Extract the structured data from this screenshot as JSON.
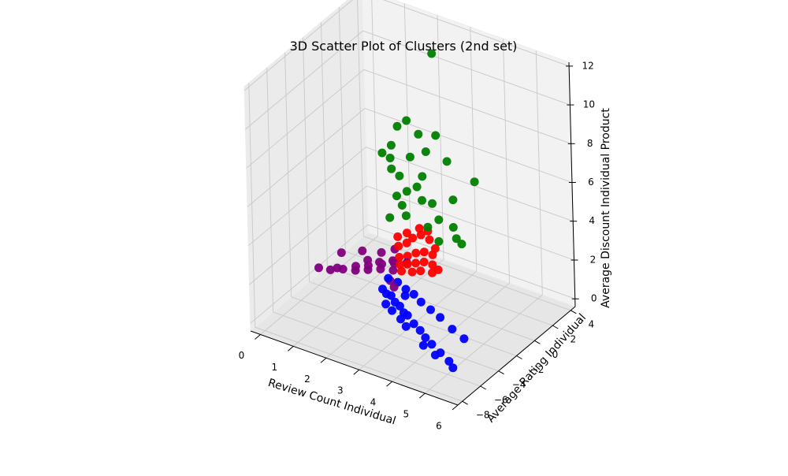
{
  "chart_data": {
    "type": "scatter3d",
    "title": "3D Scatter Plot of Clusters (2nd set)",
    "xlabel": "Review Count Individual",
    "ylabel": "Average Rating Individual",
    "zlabel": "Average Discount Individual Product",
    "xlim": [
      -0.3,
      6.0
    ],
    "ylim": [
      -8.5,
      4.5
    ],
    "zlim": [
      -0.4,
      12.2
    ],
    "xticks": [
      0,
      1,
      2,
      3,
      4,
      5,
      6
    ],
    "yticks": [
      -8,
      -6,
      -4,
      -2,
      0,
      2,
      4
    ],
    "zticks": [
      0,
      2,
      4,
      6,
      8,
      10,
      12
    ],
    "xtick_labels": [
      "0",
      "1",
      "2",
      "3",
      "4",
      "5",
      "6"
    ],
    "ytick_labels": [
      "−8",
      "−6",
      "−4",
      "−2",
      "0",
      "2",
      "4"
    ],
    "ztick_labels": [
      "0",
      "2",
      "4",
      "6",
      "8",
      "10",
      "12"
    ],
    "grid": true,
    "legend": "none",
    "series": [
      {
        "color": "#0000ff",
        "points": [
          [
            1.8,
            -1.5,
            0.3
          ],
          [
            2.0,
            -1.8,
            0.3
          ],
          [
            2.2,
            -2.0,
            0.4
          ],
          [
            2.4,
            -2.3,
            0.3
          ],
          [
            2.6,
            -2.5,
            0.3
          ],
          [
            2.8,
            -2.8,
            0.2
          ],
          [
            3.0,
            -3.1,
            0.3
          ],
          [
            3.3,
            -3.5,
            0.2
          ],
          [
            3.6,
            -3.9,
            0.2
          ],
          [
            3.9,
            -4.4,
            0.2
          ],
          [
            4.2,
            -4.8,
            0.2
          ],
          [
            4.6,
            -5.3,
            0.2
          ],
          [
            5.0,
            -5.8,
            0.2
          ],
          [
            5.2,
            -6.1,
            0.1
          ],
          [
            2.1,
            -0.9,
            0.6
          ],
          [
            2.4,
            -1.1,
            0.5
          ],
          [
            2.7,
            -1.3,
            0.5
          ],
          [
            3.0,
            -1.6,
            0.4
          ],
          [
            3.4,
            -2.0,
            0.4
          ],
          [
            3.8,
            -2.4,
            0.4
          ],
          [
            4.3,
            -2.9,
            0.3
          ],
          [
            4.8,
            -3.4,
            0.3
          ],
          [
            2.2,
            -2.6,
            0.2
          ],
          [
            2.5,
            -3.0,
            0.2
          ],
          [
            2.9,
            -3.5,
            0.2
          ],
          [
            3.2,
            -4.0,
            0.2
          ],
          [
            4.0,
            -5.0,
            0.1
          ],
          [
            4.5,
            -5.5,
            0.1
          ],
          [
            1.9,
            -1.2,
            0.8
          ],
          [
            2.6,
            -1.9,
            0.6
          ]
        ]
      },
      {
        "color": "#800080",
        "points": [
          [
            0.0,
            -2.0,
            0.5
          ],
          [
            0.3,
            -1.8,
            0.5
          ],
          [
            0.6,
            -1.5,
            0.6
          ],
          [
            0.9,
            -1.2,
            0.6
          ],
          [
            1.2,
            -0.9,
            0.7
          ],
          [
            1.5,
            -0.6,
            0.8
          ],
          [
            1.8,
            -0.3,
            0.8
          ],
          [
            1.1,
            -0.5,
            0.7
          ],
          [
            1.4,
            -0.1,
            0.8
          ],
          [
            1.7,
            0.2,
            0.9
          ],
          [
            2.0,
            0.5,
            1.0
          ],
          [
            0.8,
            -0.8,
            0.6
          ],
          [
            1.3,
            0.0,
            0.8
          ],
          [
            1.6,
            0.4,
            0.9
          ],
          [
            1.9,
            -1.0,
            0.6
          ],
          [
            2.1,
            -1.3,
            0.5
          ],
          [
            0.4,
            -1.4,
            0.5
          ],
          [
            1.0,
            -0.2,
            0.8
          ],
          [
            1.2,
            0.6,
            1.0
          ],
          [
            0.7,
            0.3,
            0.9
          ],
          [
            0.2,
            -0.2,
            0.7
          ],
          [
            1.5,
            1.0,
            1.2
          ]
        ]
      },
      {
        "color": "#ff0000",
        "points": [
          [
            1.8,
            0.4,
            1.2
          ],
          [
            2.0,
            0.6,
            1.3
          ],
          [
            2.2,
            0.8,
            1.5
          ],
          [
            2.4,
            1.0,
            1.6
          ],
          [
            2.6,
            1.2,
            1.5
          ],
          [
            2.1,
            0.2,
            1.1
          ],
          [
            2.3,
            0.4,
            1.2
          ],
          [
            2.5,
            0.6,
            1.3
          ],
          [
            2.7,
            0.8,
            1.2
          ],
          [
            1.9,
            0.9,
            1.8
          ],
          [
            2.0,
            1.2,
            2.0
          ],
          [
            2.2,
            1.4,
            2.2
          ],
          [
            2.4,
            1.6,
            2.0
          ],
          [
            1.7,
            0.7,
            1.6
          ],
          [
            1.6,
            1.0,
            1.9
          ],
          [
            2.5,
            0.2,
            1.0
          ],
          [
            2.8,
            0.4,
            1.0
          ],
          [
            2.9,
            0.7,
            1.1
          ],
          [
            2.3,
            0.0,
            0.9
          ],
          [
            1.9,
            0.1,
            1.0
          ],
          [
            2.1,
            1.6,
            2.4
          ],
          [
            2.3,
            1.8,
            2.3
          ],
          [
            1.8,
            1.3,
            2.1
          ],
          [
            2.6,
            1.5,
            1.7
          ],
          [
            2.0,
            -0.1,
            0.8
          ]
        ]
      },
      {
        "color": "#008000",
        "points": [
          [
            2.5,
            2.0,
            11.5
          ],
          [
            1.3,
            0.6,
            6.2
          ],
          [
            1.5,
            0.9,
            6.6
          ],
          [
            1.6,
            0.5,
            5.6
          ],
          [
            1.7,
            1.0,
            5.1
          ],
          [
            1.8,
            0.3,
            4.4
          ],
          [
            2.0,
            0.7,
            4.6
          ],
          [
            2.2,
            1.1,
            4.8
          ],
          [
            2.4,
            0.9,
            4.3
          ],
          [
            2.6,
            1.3,
            4.1
          ],
          [
            2.9,
            0.9,
            3.6
          ],
          [
            3.2,
            1.4,
            3.2
          ],
          [
            3.4,
            1.0,
            2.9
          ],
          [
            1.5,
            1.6,
            7.3
          ],
          [
            1.7,
            1.9,
            7.6
          ],
          [
            2.0,
            2.1,
            7.0
          ],
          [
            2.3,
            1.8,
            6.4
          ],
          [
            1.4,
            1.1,
            5.8
          ],
          [
            3.6,
            2.4,
            5.4
          ],
          [
            2.8,
            2.3,
            6.0
          ],
          [
            3.1,
            1.8,
            4.4
          ],
          [
            1.9,
            0.5,
            3.9
          ],
          [
            2.1,
            0.2,
            3.6
          ],
          [
            2.7,
            0.4,
            3.3
          ],
          [
            1.6,
            0.2,
            3.2
          ],
          [
            3.0,
            0.5,
            2.7
          ],
          [
            2.2,
            1.7,
            5.1
          ],
          [
            2.5,
            2.2,
            7.2
          ],
          [
            1.9,
            1.5,
            6.0
          ],
          [
            3.5,
            1.2,
            2.6
          ]
        ]
      }
    ]
  }
}
